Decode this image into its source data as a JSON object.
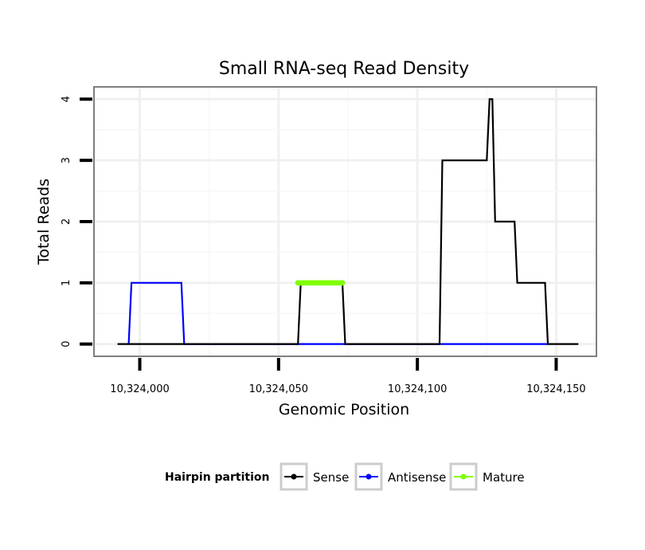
{
  "chart_data": {
    "type": "line",
    "title": "Small RNA-seq Read Density",
    "xlabel": "Genomic Position",
    "ylabel": "Total Reads",
    "xlim": [
      9983.5,
      10164.5
    ],
    "ylim": [
      -0.2,
      4.2
    ],
    "x_offset": 10314000,
    "xticks": [
      {
        "value": 10000,
        "label": "10,324,000"
      },
      {
        "value": 10050,
        "label": "10,324,050"
      },
      {
        "value": 10100,
        "label": "10,324,100"
      },
      {
        "value": 10150,
        "label": "10,324,150"
      }
    ],
    "yticks": [
      {
        "value": 0,
        "label": "0"
      },
      {
        "value": 1,
        "label": "1"
      },
      {
        "value": 2,
        "label": "2"
      },
      {
        "value": 3,
        "label": "3"
      },
      {
        "value": 4,
        "label": "4"
      }
    ],
    "grid": true,
    "legend": {
      "title": "Hairpin partition",
      "placement": "bottom"
    },
    "series": [
      {
        "name": "Sense",
        "color": "#000000",
        "x": [
          9992,
          10057,
          10058,
          10073,
          10074,
          10108,
          10109,
          10125,
          10126,
          10127,
          10128,
          10135,
          10136,
          10146,
          10147,
          10158
        ],
        "values": [
          0,
          0,
          1,
          1,
          0,
          0,
          3,
          3,
          4,
          4,
          2,
          2,
          1,
          1,
          0,
          0
        ]
      },
      {
        "name": "Antisense",
        "color": "#0000ff",
        "x": [
          9996,
          9997,
          10015,
          10016,
          10147
        ],
        "values": [
          0,
          1,
          1,
          0,
          0
        ]
      },
      {
        "name": "Mature",
        "color": "#7fff00",
        "x": [
          10057,
          10058,
          10059,
          10060,
          10061,
          10062,
          10063,
          10064,
          10065,
          10066,
          10067,
          10068,
          10069,
          10070,
          10071,
          10072,
          10073
        ],
        "values": [
          1,
          1,
          1,
          1,
          1,
          1,
          1,
          1,
          1,
          1,
          1,
          1,
          1,
          1,
          1,
          1,
          1
        ]
      }
    ]
  }
}
